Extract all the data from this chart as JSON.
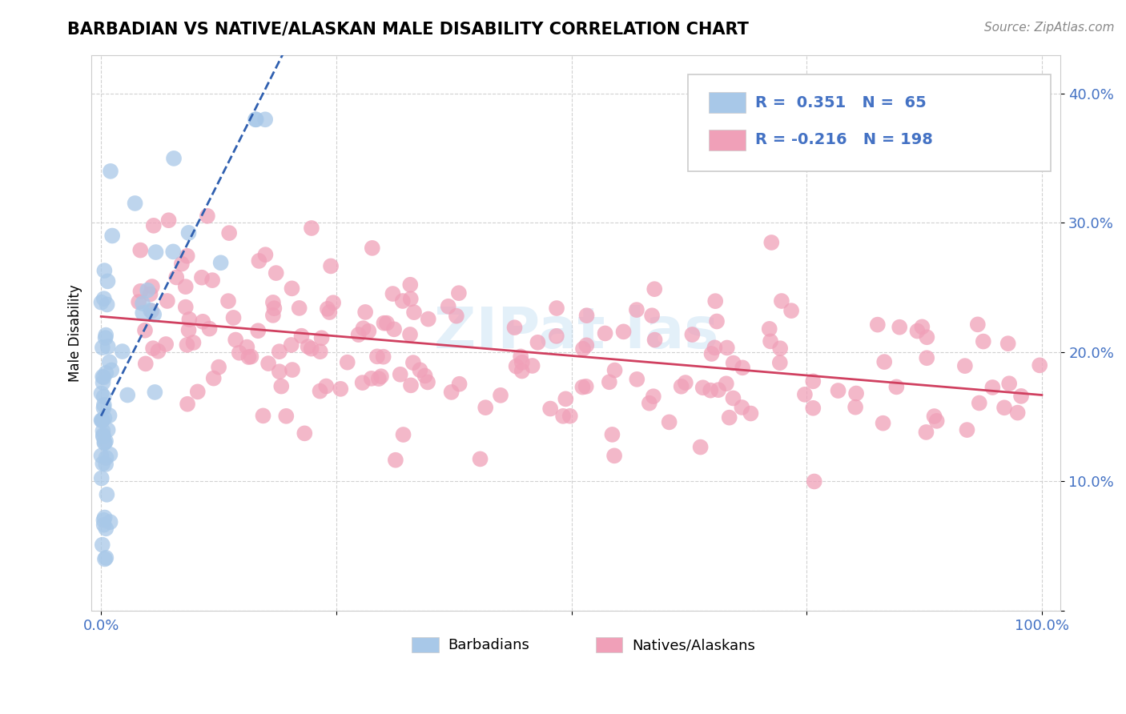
{
  "title": "BARBADIAN VS NATIVE/ALASKAN MALE DISABILITY CORRELATION CHART",
  "source": "Source: ZipAtlas.com",
  "ylabel": "Male Disability",
  "R_barb": 0.351,
  "N_barb": 65,
  "R_native": -0.216,
  "N_native": 198,
  "barb_color": "#a8c8e8",
  "barb_line_color": "#3060b0",
  "native_color": "#f0a0b8",
  "native_line_color": "#d04060",
  "ytick_labels": [
    "",
    "10.0%",
    "20.0%",
    "30.0%",
    "40.0%"
  ],
  "yticks": [
    0.0,
    0.1,
    0.2,
    0.3,
    0.4
  ],
  "xtick_labels": [
    "0.0%",
    "",
    "",
    "",
    "100.0%"
  ],
  "xticks": [
    0.0,
    0.25,
    0.5,
    0.75,
    1.0
  ],
  "tick_color": "#4472c4",
  "watermark": "ZIPat las",
  "legend_label_barb": "Barbadians",
  "legend_label_native": "Natives/Alaskans"
}
